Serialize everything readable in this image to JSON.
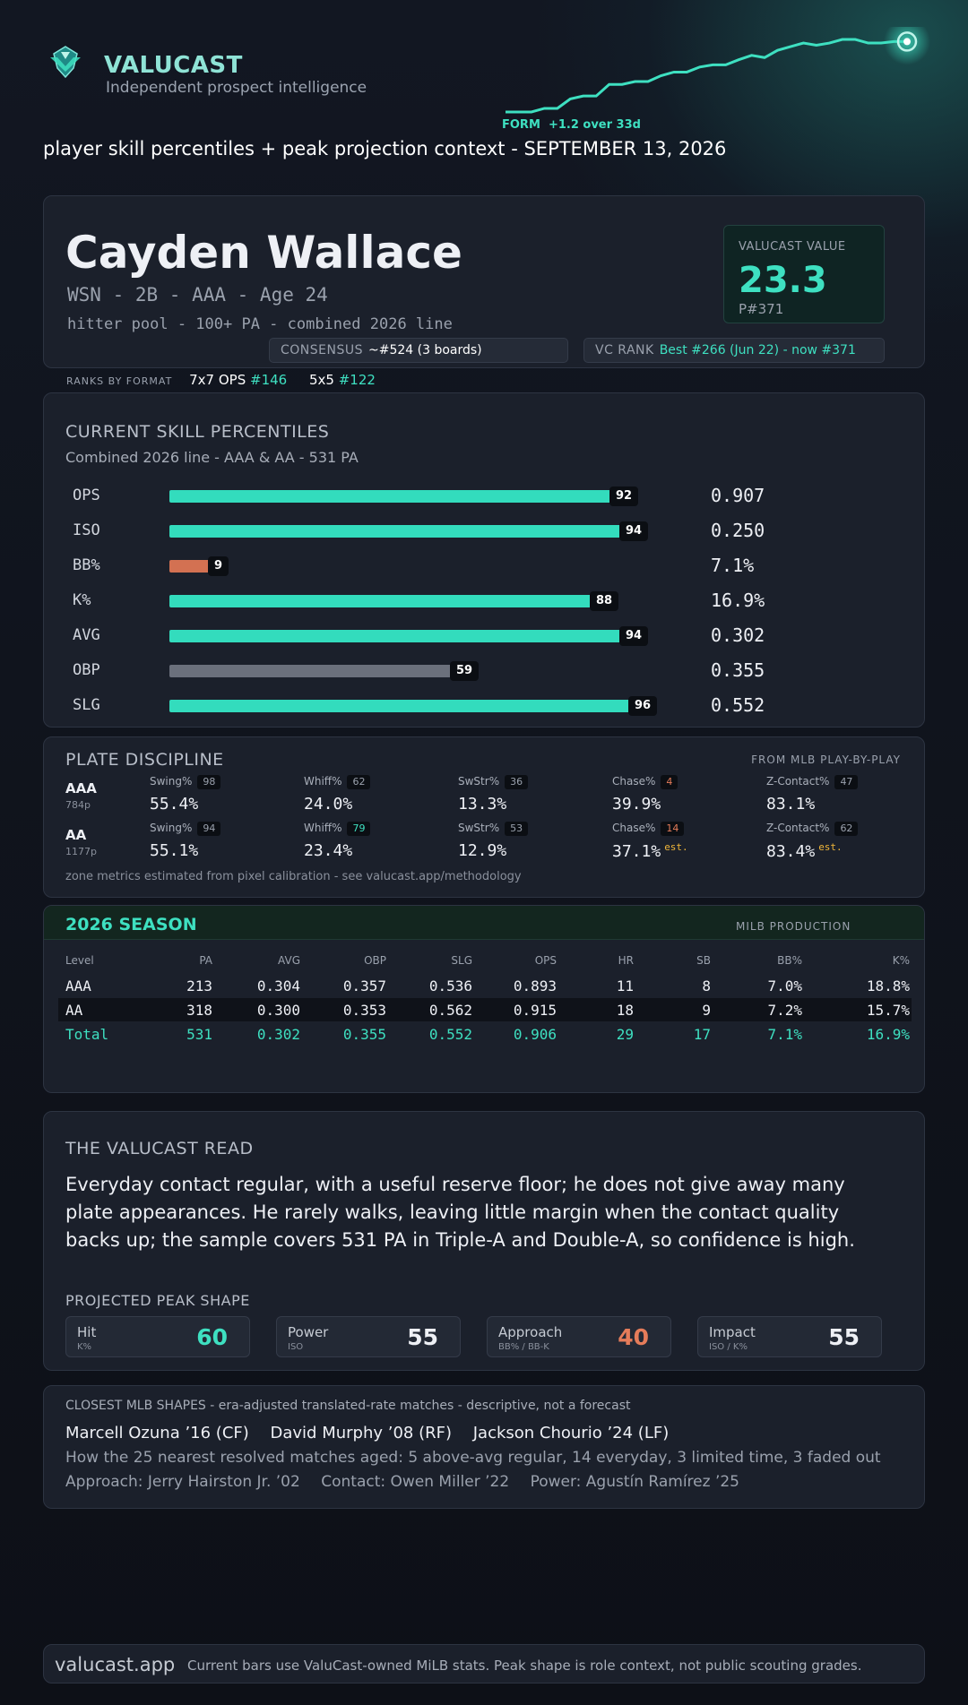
{
  "header": {
    "brand": "VALUCAST",
    "tagline": "Independent prospect intelligence",
    "form_label": "FORM",
    "form_delta": "+1.2 over 33d",
    "subtitle": "player skill percentiles + peak projection context - SEPTEMBER 13, 2026",
    "logo_icon": "valucast-logo-icon",
    "form_chart": [
      0.0,
      0.0,
      0.0,
      0.05,
      0.05,
      0.18,
      0.22,
      0.22,
      0.38,
      0.38,
      0.42,
      0.42,
      0.5,
      0.55,
      0.55,
      0.62,
      0.65,
      0.65,
      0.72,
      0.78,
      0.75,
      0.85,
      0.9,
      0.95,
      0.92,
      0.95,
      1.0,
      1.0,
      0.95,
      0.95,
      0.97,
      0.97
    ]
  },
  "player": {
    "name": "Cayden Wallace",
    "meta": "WSN - 2B - AAA - Age 24",
    "pool": "hitter pool - 100+ PA - combined 2026 line",
    "value_label": "VALUCAST VALUE",
    "value": "23.3",
    "value_rank": "P#371",
    "consensus_label": "CONSENSUS",
    "consensus_value": "~#524 (3 boards)",
    "vc_rank_label": "VC RANK",
    "vc_rank_value": "Best #266 (Jun 22) - now #371"
  },
  "formats": {
    "label": "RANKS BY FORMAT",
    "items": [
      {
        "name": "7x7 OPS",
        "rank": "#146"
      },
      {
        "name": "5x5",
        "rank": "#122"
      }
    ]
  },
  "percentiles": {
    "title": "CURRENT SKILL PERCENTILES",
    "subtitle": "Combined 2026 line - AAA & AA - 531 PA",
    "rows": [
      {
        "label": "OPS",
        "pct": 92,
        "pct_text": "92",
        "stat": "0.907",
        "color": "#33dcbd"
      },
      {
        "label": "ISO",
        "pct": 94,
        "pct_text": "94",
        "stat": "0.250",
        "color": "#33dcbd"
      },
      {
        "label": "BB%",
        "pct": 9,
        "pct_text": "9",
        "stat": "7.1%",
        "color": "#d37152"
      },
      {
        "label": "K%",
        "pct": 88,
        "pct_text": "88",
        "stat": "16.9%",
        "color": "#33dcbd"
      },
      {
        "label": "AVG",
        "pct": 94,
        "pct_text": "94",
        "stat": "0.302",
        "color": "#33dcbd"
      },
      {
        "label": "OBP",
        "pct": 59,
        "pct_text": "59",
        "stat": "0.355",
        "color": "#6b707c"
      },
      {
        "label": "SLG",
        "pct": 96,
        "pct_text": "96",
        "stat": "0.552",
        "color": "#33dcbd"
      }
    ]
  },
  "discipline": {
    "title": "PLATE DISCIPLINE",
    "source": "FROM MLB PLAY-BY-PLAY",
    "note": "zone metrics estimated from pixel calibration - see valucast.app/methodology",
    "est_label": "est.",
    "levels": [
      {
        "level": "AAA",
        "pitches": "784p",
        "metrics": [
          {
            "label": "Swing%",
            "pct": "98",
            "value": "55.4%",
            "badge": "normal",
            "est": false
          },
          {
            "label": "Whiff%",
            "pct": "62",
            "value": "24.0%",
            "badge": "normal",
            "est": false
          },
          {
            "label": "SwStr%",
            "pct": "36",
            "value": "13.3%",
            "badge": "normal",
            "est": false
          },
          {
            "label": "Chase%",
            "pct": "4",
            "value": "39.9%",
            "badge": "bad",
            "est": false
          },
          {
            "label": "Z-Contact%",
            "pct": "47",
            "value": "83.1%",
            "badge": "normal",
            "est": false
          }
        ]
      },
      {
        "level": "AA",
        "pitches": "1177p",
        "metrics": [
          {
            "label": "Swing%",
            "pct": "94",
            "value": "55.1%",
            "badge": "normal",
            "est": false
          },
          {
            "label": "Whiff%",
            "pct": "79",
            "value": "23.4%",
            "badge": "good",
            "est": false
          },
          {
            "label": "SwStr%",
            "pct": "53",
            "value": "12.9%",
            "badge": "normal",
            "est": false
          },
          {
            "label": "Chase%",
            "pct": "14",
            "value": "37.1%",
            "badge": "bad",
            "est": true
          },
          {
            "label": "Z-Contact%",
            "pct": "62",
            "value": "83.4%",
            "badge": "normal",
            "est": true
          }
        ]
      }
    ]
  },
  "season": {
    "title": "2026 SEASON",
    "source": "MILB PRODUCTION",
    "columns": [
      "Level",
      "PA",
      "AVG",
      "OBP",
      "SLG",
      "OPS",
      "HR",
      "SB",
      "BB%",
      "K%"
    ],
    "rows": [
      [
        "AAA",
        "213",
        "0.304",
        "0.357",
        "0.536",
        "0.893",
        "11",
        "8",
        "7.0%",
        "18.8%"
      ],
      [
        "AA",
        "318",
        "0.300",
        "0.353",
        "0.562",
        "0.915",
        "18",
        "9",
        "7.2%",
        "15.7%"
      ],
      [
        "Total",
        "531",
        "0.302",
        "0.355",
        "0.552",
        "0.906",
        "29",
        "17",
        "7.1%",
        "16.9%"
      ]
    ]
  },
  "read": {
    "title": "THE VALUCAST READ",
    "body": "Everyday contact regular, with a useful reserve floor; he does not give away many plate appearances. He rarely walks, leaving little margin when the contact quality backs up; the sample covers 531 PA in Triple-A and Double-A, so confidence is high.",
    "peak_title": "PROJECTED PEAK SHAPE",
    "peak": [
      {
        "label": "Hit",
        "sub": "K%",
        "value": "60",
        "color": "#3ee0c1"
      },
      {
        "label": "Power",
        "sub": "ISO",
        "value": "55",
        "color": "#eef0f5"
      },
      {
        "label": "Approach",
        "sub": "BB% / BB-K",
        "value": "40",
        "color": "#e57c5a"
      },
      {
        "label": "Impact",
        "sub": "ISO / K%",
        "value": "55",
        "color": "#eef0f5"
      }
    ]
  },
  "closest": {
    "title": "CLOSEST MLB SHAPES - era-adjusted translated-rate matches - descriptive, not a forecast",
    "names": [
      "Marcell Ozuna ’16 (CF)",
      "David Murphy ’08 (RF)",
      "Jackson Chourio ’24 (LF)"
    ],
    "aggregate": "How the 25 nearest resolved matches aged: 5 above-avg regular, 14 everyday, 3 limited time, 3 faded out",
    "comps": [
      "Approach: Jerry Hairston Jr. ’02",
      "Contact: Owen Miller ’22",
      "Power: Agustín Ramírez ’25"
    ]
  },
  "footer": {
    "site": "valucast.app",
    "text": "Current bars use ValuCast-owned MiLB stats. Peak shape is role context, not public scouting grades."
  }
}
